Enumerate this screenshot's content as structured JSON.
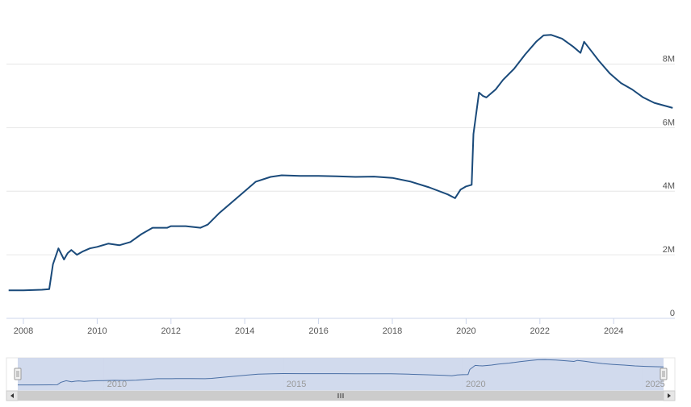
{
  "chart_data": {
    "type": "line",
    "title": "",
    "xlabel": "",
    "ylabel": "",
    "xlim": [
      2007.6,
      2025.6
    ],
    "ylim": [
      0,
      9000000
    ],
    "grid": true,
    "legend": "none",
    "x_ticks": [
      2008,
      2010,
      2012,
      2014,
      2016,
      2018,
      2020,
      2022,
      2024
    ],
    "x_tick_labels": [
      "2008",
      "2010",
      "2012",
      "2014",
      "2016",
      "2018",
      "2020",
      "2022",
      "2024"
    ],
    "y_ticks": [
      0,
      2000000,
      4000000,
      6000000,
      8000000
    ],
    "y_tick_labels": [
      "0",
      "2M",
      "4M",
      "6M",
      "8M"
    ],
    "series": [
      {
        "color": "#1a4a7a",
        "x": [
          2007.6,
          2008.0,
          2008.5,
          2008.7,
          2008.8,
          2008.95,
          2009.1,
          2009.2,
          2009.3,
          2009.45,
          2009.6,
          2009.8,
          2010.0,
          2010.3,
          2010.6,
          2010.9,
          2011.2,
          2011.5,
          2011.9,
          2012.0,
          2012.4,
          2012.8,
          2013.0,
          2013.3,
          2013.6,
          2014.0,
          2014.3,
          2014.7,
          2015.0,
          2015.5,
          2016.0,
          2016.5,
          2017.0,
          2017.5,
          2018.0,
          2018.5,
          2019.0,
          2019.5,
          2019.7,
          2019.85,
          2020.0,
          2020.15,
          2020.2,
          2020.35,
          2020.45,
          2020.55,
          2020.8,
          2021.0,
          2021.3,
          2021.6,
          2021.9,
          2022.1,
          2022.3,
          2022.6,
          2022.9,
          2023.1,
          2023.2,
          2023.4,
          2023.6,
          2023.9,
          2024.2,
          2024.5,
          2024.8,
          2025.1,
          2025.6
        ],
        "y": [
          880000,
          880000,
          900000,
          920000,
          1700000,
          2200000,
          1850000,
          2050000,
          2150000,
          2000000,
          2100000,
          2200000,
          2250000,
          2350000,
          2300000,
          2400000,
          2650000,
          2850000,
          2850000,
          2900000,
          2900000,
          2850000,
          2950000,
          3300000,
          3600000,
          4000000,
          4300000,
          4450000,
          4500000,
          4480000,
          4480000,
          4470000,
          4450000,
          4460000,
          4420000,
          4300000,
          4120000,
          3900000,
          3780000,
          4050000,
          4150000,
          4200000,
          5800000,
          7100000,
          7000000,
          6950000,
          7200000,
          7500000,
          7850000,
          8300000,
          8700000,
          8900000,
          8920000,
          8800000,
          8550000,
          8350000,
          8700000,
          8400000,
          8100000,
          7700000,
          7400000,
          7200000,
          6950000,
          6780000,
          6620000
        ]
      }
    ]
  },
  "navigator": {
    "x_tick_labels": [
      "2010",
      "2015",
      "2020",
      "2025"
    ],
    "x_ticks": [
      2010,
      2015,
      2020,
      2025
    ],
    "scroll_icon": "grip-lines-icon",
    "left_arrow_icon": "arrow-left-icon",
    "right_arrow_icon": "arrow-right-icon",
    "accent_color": "#ccd6eb"
  }
}
